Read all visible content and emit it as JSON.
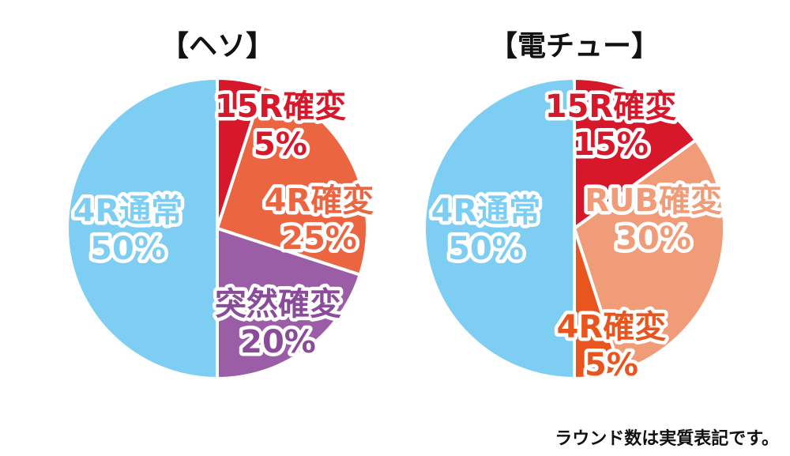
{
  "chart_data": [
    {
      "type": "pie",
      "title": "【ヘソ】",
      "start": "top",
      "direction": "clockwise",
      "slices": [
        {
          "name": "15R確変",
          "value": 5,
          "label": "5%",
          "color": "#d7182a",
          "text_color": "#d7182a"
        },
        {
          "name": "4R確変",
          "value": 25,
          "label": "25%",
          "color": "#ec6541",
          "text_color": "#ec6541"
        },
        {
          "name": "突然確変",
          "value": 20,
          "label": "20%",
          "color": "#9b5ea6",
          "text_color": "#8a4b9a"
        },
        {
          "name": "4R通常",
          "value": 50,
          "label": "50%",
          "color": "#7ecef4",
          "text_color": "#7ecef4"
        }
      ]
    },
    {
      "type": "pie",
      "title": "【電チュー】",
      "start": "top",
      "direction": "clockwise",
      "slices": [
        {
          "name": "15R確変",
          "value": 15,
          "label": "15%",
          "color": "#d7182a",
          "text_color": "#d7182a"
        },
        {
          "name": "RUB確変",
          "value": 30,
          "label": "30%",
          "color": "#f19c79",
          "text_color": "#f19c79"
        },
        {
          "name": "4R確変",
          "value": 5,
          "label": "5%",
          "color": "#e8551e",
          "text_color": "#e8551e"
        },
        {
          "name": "4R通常",
          "value": 50,
          "label": "50%",
          "color": "#7ecef4",
          "text_color": "#7ecef4"
        }
      ]
    }
  ],
  "footnote": "ラウンド数は実質表記です。"
}
